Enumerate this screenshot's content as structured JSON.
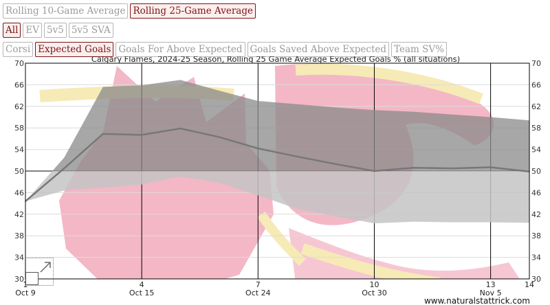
{
  "controls": {
    "window": [
      {
        "label": "Rolling 10-Game Average",
        "active": false
      },
      {
        "label": "Rolling 25-Game Average",
        "active": true
      }
    ],
    "situation": [
      {
        "label": "All",
        "active": true
      },
      {
        "label": "EV",
        "active": false
      },
      {
        "label": "5v5",
        "active": false
      },
      {
        "label": "5v5 SVA",
        "active": false
      }
    ],
    "metric": [
      {
        "label": "Corsi",
        "active": false
      },
      {
        "label": "Expected Goals",
        "active": true
      },
      {
        "label": "Goals For Above Expected",
        "active": false
      },
      {
        "label": "Goals Saved Above Expected",
        "active": false
      },
      {
        "label": "Team SV%",
        "active": false
      }
    ]
  },
  "colors": {
    "line": "#777777",
    "band_above_50": "#8a8a8a",
    "band_below_50": "#c4c4c4",
    "active_button": "#7a1512",
    "logo_red": "#f4b7c6",
    "logo_gold": "#f6eab6"
  },
  "chart_data": {
    "type": "line",
    "title": "Calgary Flames, 2024-25 Season, Rolling 25 Game Average Expected Goals % (all situations)",
    "watermark": "www.naturalstattrick.com",
    "xlim": [
      1,
      14
    ],
    "ylim": [
      30,
      70
    ],
    "y_ticks": [
      30,
      34,
      38,
      42,
      46,
      50,
      54,
      58,
      62,
      66,
      70
    ],
    "x_ticks": [
      {
        "game": 1,
        "label": "1",
        "date": "Oct 9"
      },
      {
        "game": 4,
        "label": "4",
        "date": "Oct 15"
      },
      {
        "game": 7,
        "label": "7",
        "date": "Oct 24"
      },
      {
        "game": 10,
        "label": "10",
        "date": "Oct 30"
      },
      {
        "game": 13,
        "label": "13",
        "date": "Nov 5"
      },
      {
        "game": 14,
        "label": "14",
        "date": ""
      }
    ],
    "reference_line": 50,
    "series": [
      {
        "x": [
          1,
          2,
          3,
          4,
          5,
          6,
          7,
          8,
          9,
          10,
          11,
          12,
          13,
          14
        ],
        "values": [
          44.4,
          50.5,
          56.9,
          56.7,
          57.9,
          56.3,
          54.2,
          52.7,
          51.3,
          50.0,
          50.6,
          50.5,
          50.7,
          49.9
        ],
        "upper": [
          44.4,
          52.5,
          65.6,
          65.9,
          66.9,
          64.9,
          63.0,
          62.4,
          61.8,
          61.3,
          61.0,
          60.5,
          60.0,
          59.4
        ],
        "lower": [
          44.4,
          46.4,
          46.9,
          47.5,
          49.0,
          47.8,
          45.5,
          43.0,
          41.6,
          40.3,
          40.6,
          40.5,
          40.5,
          40.4
        ]
      }
    ],
    "grid": true
  }
}
